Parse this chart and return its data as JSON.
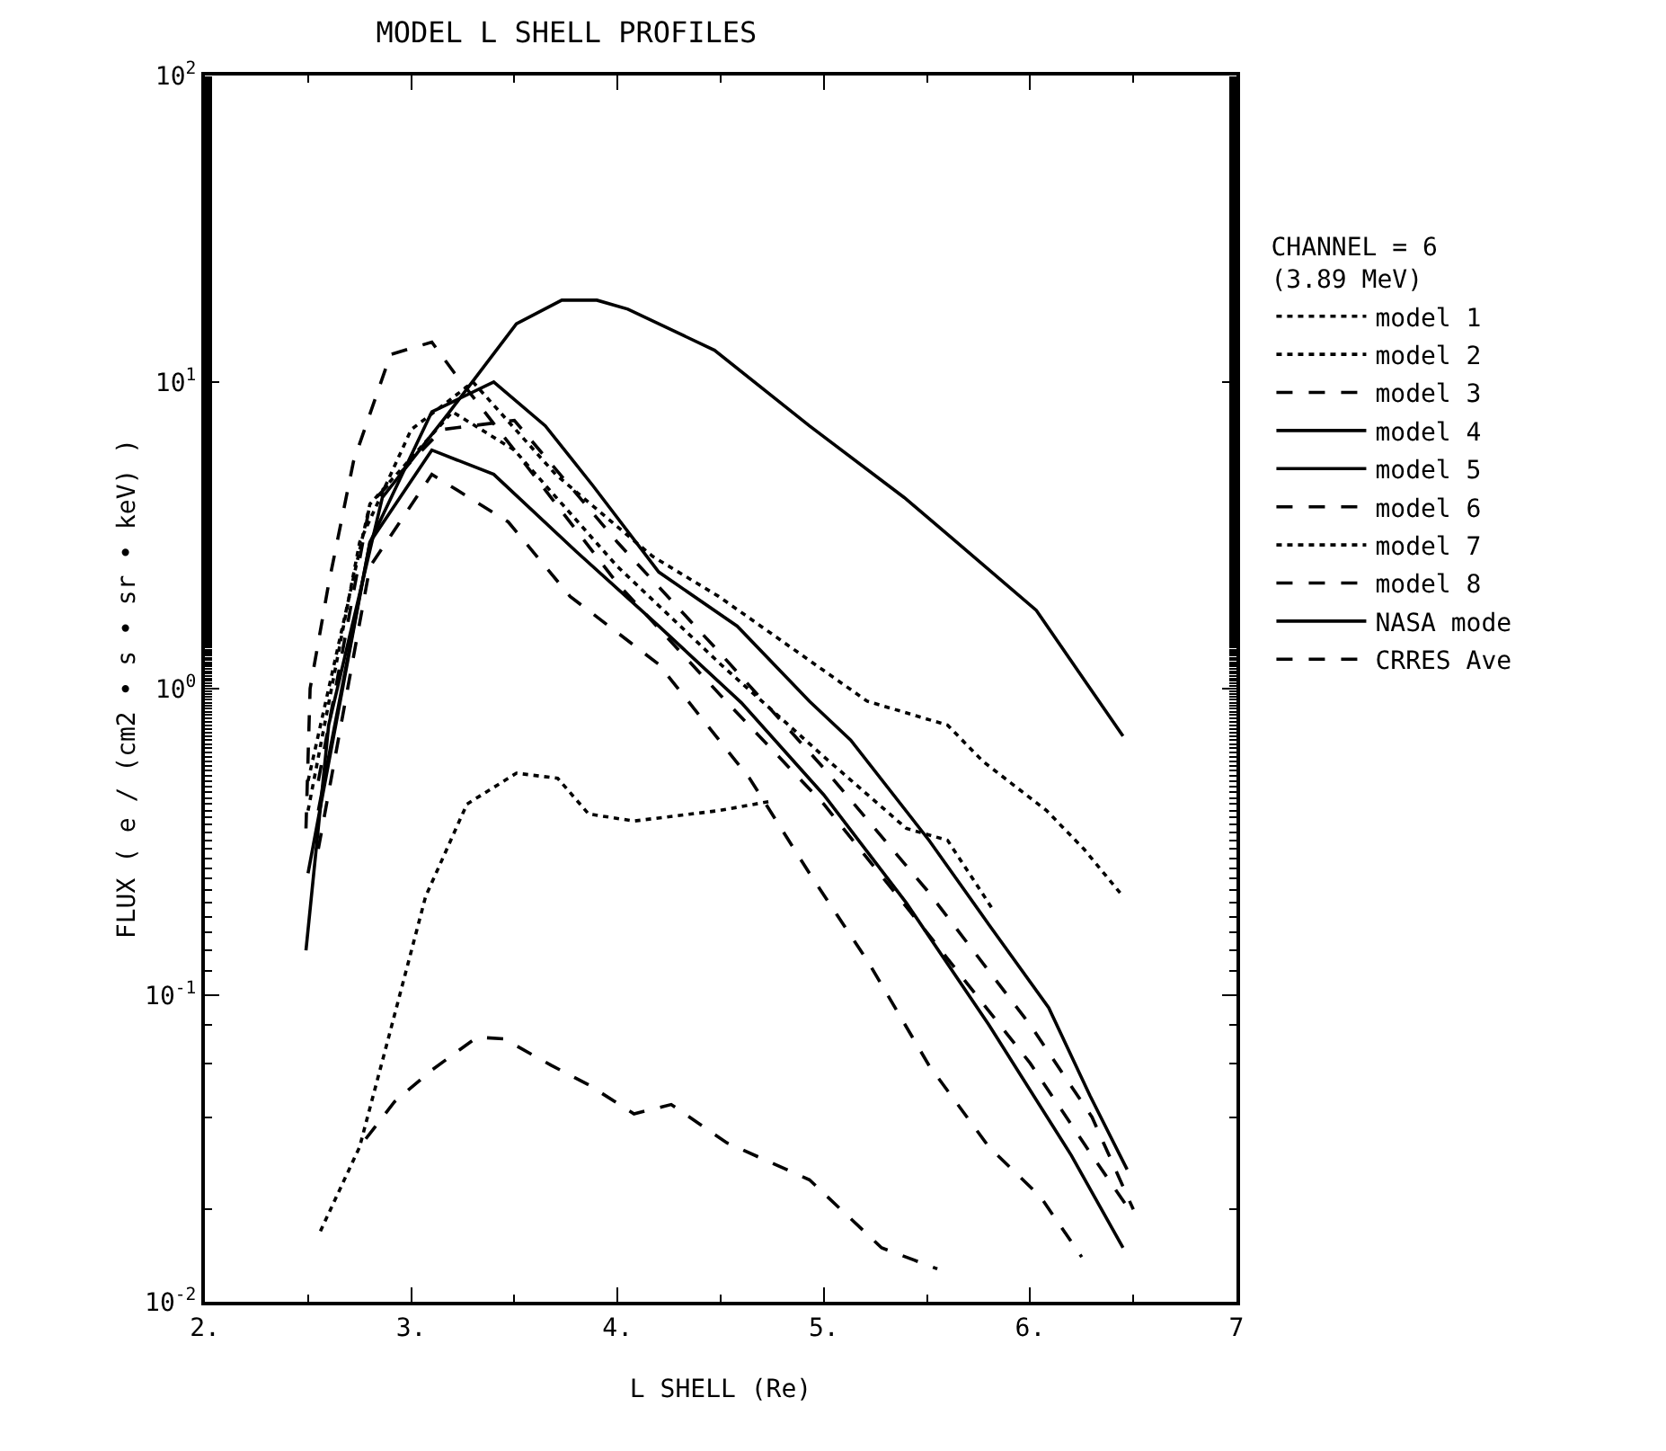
{
  "chart_data": {
    "type": "line",
    "title": "MODEL L SHELL PROFILES",
    "xlabel": "L SHELL (Re)",
    "ylabel": "FLUX ( e / (cm2 • s • sr • keV) )",
    "legend_title": "CHANNEL = 6\n(3.89 MeV)",
    "log": "y",
    "grid": false,
    "legend": "right",
    "marker": "none",
    "xlim": [
      2,
      7
    ],
    "xticks": [
      {
        "value": 2,
        "label": "2."
      },
      {
        "value": 3,
        "label": "3."
      },
      {
        "value": 4,
        "label": "4."
      },
      {
        "value": 5,
        "label": "5."
      },
      {
        "value": 6,
        "label": "6."
      },
      7
    ],
    "ylim": [
      0.01,
      100
    ],
    "yticks": [
      {
        "value": 0.01,
        "label": "10$^{-2}$"
      },
      {
        "value": 0.1,
        "label": "10$^{-1}$"
      },
      {
        "value": 1,
        "label": "10$^{0}$"
      },
      {
        "value": 10,
        "label": "10$^{1}$"
      },
      {
        "value": 100,
        "label": "10$^{2}$"
      }
    ],
    "series": [
      {
        "name": "model 1",
        "color": "#000000",
        "line_style": "dotted",
        "x": [
          2.5,
          2.75,
          3.0,
          3.3,
          3.7,
          4.17,
          4.49,
          5.21,
          5.6,
          5.77,
          6.08,
          6.26,
          6.45
        ],
        "values": [
          0.4,
          3,
          7,
          10,
          5,
          2.7,
          2.0,
          0.91,
          0.76,
          0.58,
          0.4,
          0.3,
          0.21
        ]
      },
      {
        "name": "model 2",
        "color": "#000000",
        "line_style": "dotted",
        "x": [
          2.56,
          2.75,
          2.9,
          3.07,
          3.27,
          3.51,
          3.71,
          3.86,
          4.08,
          4.49,
          4.75
        ],
        "values": [
          0.017,
          0.032,
          0.077,
          0.21,
          0.42,
          0.53,
          0.51,
          0.39,
          0.37,
          0.4,
          0.43
        ]
      },
      {
        "name": "model 3",
        "color": "#000000",
        "line_style": "dashed",
        "x": [
          2.55,
          2.8,
          3.1,
          3.47,
          3.77,
          4.2,
          4.64,
          4.93,
          5.21,
          5.51,
          5.8,
          6.05,
          6.25
        ],
        "values": [
          0.3,
          2.5,
          5,
          3.5,
          2.0,
          1.2,
          0.51,
          0.25,
          0.13,
          0.059,
          0.032,
          0.022,
          0.014
        ]
      },
      {
        "name": "model 4",
        "color": "#000000",
        "line_style": "solid",
        "x": [
          2.55,
          2.8,
          3.1,
          3.4,
          3.8,
          4.2,
          4.6,
          5.0,
          5.4,
          5.8,
          6.2,
          6.45
        ],
        "values": [
          0.4,
          3,
          6,
          5,
          2.8,
          1.6,
          0.9,
          0.45,
          0.2,
          0.08,
          0.03,
          0.015
        ]
      },
      {
        "name": "model 5",
        "color": "#000000",
        "line_style": "solid",
        "x": [
          2.5,
          2.8,
          3.1,
          3.4,
          3.65,
          3.88,
          4.2,
          4.58,
          4.93,
          5.13,
          5.51,
          5.8,
          6.09,
          6.29,
          6.47
        ],
        "values": [
          0.25,
          3,
          8,
          10,
          7.2,
          4.6,
          2.4,
          1.6,
          0.91,
          0.68,
          0.32,
          0.17,
          0.091,
          0.047,
          0.027
        ]
      },
      {
        "name": "model 6",
        "color": "#000000",
        "line_style": "dashed",
        "x": [
          2.78,
          2.92,
          3.1,
          3.32,
          3.45,
          3.68,
          3.86,
          4.08,
          4.26,
          4.53,
          4.93,
          5.28,
          5.55
        ],
        "values": [
          0.034,
          0.045,
          0.057,
          0.073,
          0.072,
          0.059,
          0.051,
          0.041,
          0.044,
          0.033,
          0.025,
          0.015,
          0.0128
        ]
      },
      {
        "name": "model 7",
        "color": "#000000",
        "line_style": "dotted",
        "x": [
          2.5,
          2.8,
          3.2,
          3.5,
          4.0,
          4.5,
          5.0,
          5.4,
          5.6,
          5.82
        ],
        "values": [
          0.5,
          4,
          8,
          6,
          2.5,
          1.2,
          0.6,
          0.35,
          0.32,
          0.19
        ]
      },
      {
        "name": "model 8",
        "color": "#000000",
        "line_style": "dashed",
        "x": [
          2.55,
          2.8,
          3.15,
          3.5,
          4.0,
          4.5,
          5.0,
          5.5,
          6.0,
          6.3,
          6.5
        ],
        "values": [
          0.5,
          4,
          7,
          7.5,
          3,
          1.3,
          0.55,
          0.22,
          0.08,
          0.04,
          0.02
        ]
      },
      {
        "name": "NASA mode",
        "color": "#000000",
        "line_style": "solid",
        "x": [
          2.49,
          2.6,
          2.86,
          3.18,
          3.51,
          3.73,
          3.9,
          4.05,
          4.47,
          4.93,
          5.39,
          5.62,
          6.03,
          6.45
        ],
        "values": [
          0.14,
          0.76,
          4.2,
          7.9,
          15.5,
          18.5,
          18.5,
          17.3,
          12.7,
          7.2,
          4.2,
          3.1,
          1.8,
          0.7
        ]
      },
      {
        "name": "CRRES Ave",
        "color": "#000000",
        "line_style": "dashed",
        "x": [
          2.49,
          2.51,
          2.6,
          2.72,
          2.9,
          3.1,
          3.21,
          3.5,
          4.0,
          4.5,
          5.0,
          5.5,
          6.0,
          6.3,
          6.48
        ],
        "values": [
          0.35,
          1.0,
          2.2,
          5.5,
          12.3,
          13.5,
          10.7,
          6,
          2.2,
          0.95,
          0.42,
          0.16,
          0.06,
          0.03,
          0.02
        ]
      }
    ]
  }
}
